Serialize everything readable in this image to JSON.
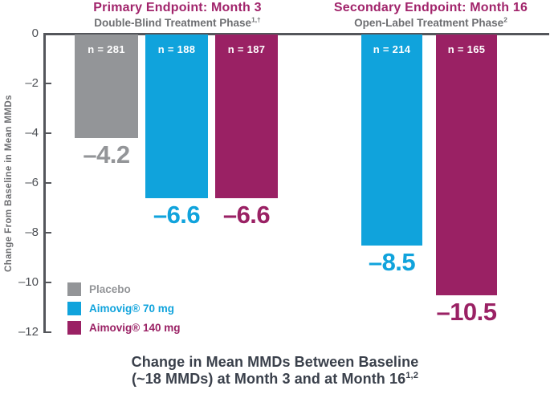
{
  "header": {
    "primary": {
      "title": "Primary Endpoint: Month 3",
      "subtitle": "Double-Blind Treatment Phase",
      "subtitle_sup": "1,†"
    },
    "secondary": {
      "title": "Secondary Endpoint: Month 16",
      "subtitle": "Open-Label Treatment Phase",
      "subtitle_sup": "2"
    }
  },
  "y_axis": {
    "title": "Change From Baseline in Mean MMDs",
    "ticks": [
      0,
      -2,
      -4,
      -6,
      -8,
      -10,
      -12
    ],
    "tick_labels": [
      "0",
      "–2",
      "–4",
      "–6",
      "–8",
      "–10",
      "–12"
    ]
  },
  "chart_data": {
    "type": "bar",
    "ylabel": "Change From Baseline in Mean MMDs",
    "ylim": [
      -12,
      0
    ],
    "yticks": [
      0,
      -2,
      -4,
      -6,
      -8,
      -10,
      -12
    ],
    "grid": false,
    "legend_position": "bottom-left",
    "groups": [
      {
        "name": "Primary Endpoint: Month 3",
        "phase": "Double-Blind Treatment Phase",
        "bars": [
          {
            "series": "Placebo",
            "n_label": "n = 281",
            "value": -4.2,
            "value_label": "–4.2",
            "color_key": "placebo"
          },
          {
            "series": "Aimovig® 70 mg",
            "n_label": "n = 188",
            "value": -6.6,
            "value_label": "–6.6",
            "color_key": "aimovig70"
          },
          {
            "series": "Aimovig® 140 mg",
            "n_label": "n = 187",
            "value": -6.6,
            "value_label": "–6.6",
            "color_key": "aimovig140"
          }
        ]
      },
      {
        "name": "Secondary Endpoint: Month 16",
        "phase": "Open-Label Treatment Phase",
        "bars": [
          {
            "series": "Aimovig® 70 mg",
            "n_label": "n = 214",
            "value": -8.5,
            "value_label": "–8.5",
            "color_key": "aimovig70"
          },
          {
            "series": "Aimovig® 140 mg",
            "n_label": "n = 165",
            "value": -10.5,
            "value_label": "–10.5",
            "color_key": "aimovig140"
          }
        ]
      }
    ]
  },
  "legend": {
    "items": [
      {
        "label": "Placebo",
        "color_key": "placebo"
      },
      {
        "label": "Aimovig® 70 mg",
        "color_key": "aimovig70"
      },
      {
        "label": "Aimovig® 140 mg",
        "color_key": "aimovig140"
      }
    ]
  },
  "caption": {
    "line1": "Change in Mean MMDs Between Baseline",
    "line2": "(~18 MMDs) at Month 3 and at Month 16",
    "line2_sup": "1,2"
  },
  "colors": {
    "placebo": "#939598",
    "aimovig70": "#10a3dc",
    "aimovig140": "#9a2164",
    "title_magenta": "#a1246b",
    "subtitle_gray": "#6d6e71",
    "axis_gray": "#54565b",
    "caption_dark": "#3a404b",
    "n_label_text": "#ffffff"
  }
}
